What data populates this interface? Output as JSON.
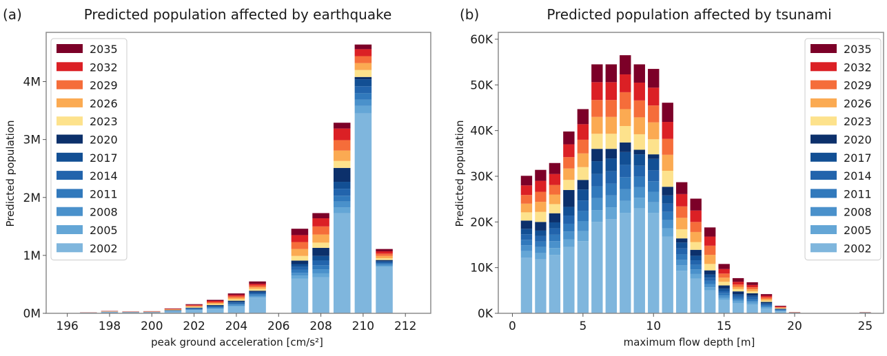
{
  "colors": {
    "2002": "#7fb6dd",
    "2005": "#64a6d6",
    "2008": "#4a91cb",
    "2011": "#3179bc",
    "2014": "#2264ac",
    "2017": "#124f94",
    "2020": "#0c306b",
    "2023": "#fde28c",
    "2026": "#fbaa52",
    "2029": "#f56d3a",
    "2032": "#db2025",
    "2035": "#7c0028"
  },
  "chart_data": [
    {
      "type": "bar",
      "stacked": true,
      "panel_label": "(a)",
      "title": "Predicted population affected by earthquake",
      "xlabel": "peak ground acceleration [cm/s²]",
      "ylabel": "Predicted population",
      "xlim": [
        195,
        213.2
      ],
      "ylim": [
        0,
        4.85
      ],
      "x_ticks": [
        196,
        198,
        200,
        202,
        204,
        206,
        208,
        210,
        212
      ],
      "y_ticks": [
        0,
        1,
        2,
        3,
        4
      ],
      "y_tick_labels": [
        "0M",
        "1M",
        "2M",
        "3M",
        "4M"
      ],
      "legend_position": "top-left",
      "legend": [
        "2035",
        "2032",
        "2029",
        "2026",
        "2023",
        "2020",
        "2017",
        "2014",
        "2011",
        "2008",
        "2005",
        "2002"
      ],
      "stack_order": [
        "2002",
        "2005",
        "2008",
        "2011",
        "2014",
        "2017",
        "2020",
        "2023",
        "2026",
        "2029",
        "2032",
        "2035"
      ],
      "categories": [
        196,
        197,
        198,
        199,
        200,
        201,
        202,
        203,
        204,
        205,
        206,
        207,
        208,
        209,
        210,
        211,
        212
      ],
      "series": [
        {
          "name": "2002",
          "values": [
            0,
            0.005,
            0.015,
            0.01,
            0.01,
            0.03,
            0.05,
            0.07,
            0.11,
            0.27,
            0,
            0.6,
            0.62,
            1.73,
            3.45,
            0.8,
            0
          ]
        },
        {
          "name": "2005",
          "values": [
            0,
            0.001,
            0.002,
            0.002,
            0.002,
            0.004,
            0.008,
            0.012,
            0.018,
            0.02,
            0,
            0.05,
            0.07,
            0.1,
            0.13,
            0.02,
            0
          ]
        },
        {
          "name": "2008",
          "values": [
            0,
            0.001,
            0.002,
            0.002,
            0.002,
            0.004,
            0.008,
            0.012,
            0.018,
            0.02,
            0,
            0.05,
            0.07,
            0.1,
            0.11,
            0.02,
            0
          ]
        },
        {
          "name": "2011",
          "values": [
            0,
            0.001,
            0.002,
            0.002,
            0.002,
            0.004,
            0.008,
            0.012,
            0.018,
            0.02,
            0,
            0.05,
            0.07,
            0.1,
            0.11,
            0.02,
            0
          ]
        },
        {
          "name": "2014",
          "values": [
            0,
            0.001,
            0.002,
            0.002,
            0.002,
            0.004,
            0.008,
            0.012,
            0.018,
            0.02,
            0,
            0.05,
            0.08,
            0.12,
            0.12,
            0.02,
            0
          ]
        },
        {
          "name": "2017",
          "values": [
            0,
            0.001,
            0.002,
            0.002,
            0.002,
            0.004,
            0.008,
            0.012,
            0.018,
            0.02,
            0,
            0.05,
            0.08,
            0.12,
            0.12,
            0.02,
            0
          ]
        },
        {
          "name": "2020",
          "values": [
            0,
            0.001,
            0.002,
            0.002,
            0.002,
            0.004,
            0.008,
            0.012,
            0.018,
            0.02,
            0,
            0.06,
            0.14,
            0.24,
            0.04,
            0.02,
            0
          ]
        },
        {
          "name": "2023",
          "values": [
            0,
            0.001,
            0.003,
            0.002,
            0.003,
            0.006,
            0.012,
            0.018,
            0.025,
            0.03,
            0,
            0.08,
            0.09,
            0.12,
            0.12,
            0.03,
            0
          ]
        },
        {
          "name": "2026",
          "values": [
            0,
            0.001,
            0.003,
            0.002,
            0.003,
            0.006,
            0.012,
            0.018,
            0.025,
            0.03,
            0,
            0.12,
            0.14,
            0.18,
            0.12,
            0.04,
            0
          ]
        },
        {
          "name": "2029",
          "values": [
            0,
            0.001,
            0.003,
            0.002,
            0.003,
            0.006,
            0.012,
            0.018,
            0.025,
            0.03,
            0,
            0.12,
            0.14,
            0.18,
            0.12,
            0.04,
            0
          ]
        },
        {
          "name": "2032",
          "values": [
            0,
            0.001,
            0.003,
            0.002,
            0.003,
            0.006,
            0.012,
            0.018,
            0.025,
            0.03,
            0,
            0.12,
            0.14,
            0.2,
            0.12,
            0.04,
            0
          ]
        },
        {
          "name": "2035",
          "values": [
            0,
            0.002,
            0.003,
            0.002,
            0.003,
            0.006,
            0.012,
            0.018,
            0.025,
            0.04,
            0,
            0.11,
            0.09,
            0.1,
            0.08,
            0.04,
            0
          ]
        }
      ]
    },
    {
      "type": "bar",
      "stacked": true,
      "panel_label": "(b)",
      "title": "Predicted population affected by tsunami",
      "xlabel": "maximum flow depth [m]",
      "ylabel": "Predicted population",
      "xlim": [
        -1,
        26.3
      ],
      "ylim": [
        0,
        61500
      ],
      "x_ticks": [
        0,
        5,
        10,
        15,
        20,
        25
      ],
      "y_ticks": [
        0,
        10000,
        20000,
        30000,
        40000,
        50000,
        60000
      ],
      "y_tick_labels": [
        "0K",
        "10K",
        "20K",
        "30K",
        "40K",
        "50K",
        "60K"
      ],
      "legend_position": "top-right",
      "legend": [
        "2035",
        "2032",
        "2029",
        "2026",
        "2023",
        "2020",
        "2017",
        "2014",
        "2011",
        "2008",
        "2005",
        "2002"
      ],
      "stack_order": [
        "2002",
        "2005",
        "2008",
        "2011",
        "2014",
        "2017",
        "2020",
        "2023",
        "2026",
        "2029",
        "2032",
        "2035"
      ],
      "categories": [
        1,
        2,
        3,
        4,
        5,
        6,
        7,
        8,
        9,
        10,
        11,
        12,
        13,
        14,
        15,
        16,
        17,
        18,
        19,
        20,
        21,
        22,
        23,
        24,
        25
      ],
      "series": [
        {
          "name": "2002",
          "values": [
            12200,
            11800,
            12800,
            14500,
            15800,
            20000,
            20600,
            22000,
            23000,
            22000,
            16800,
            9300,
            7600,
            5000,
            2900,
            2200,
            1900,
            1000,
            400,
            50,
            0,
            0,
            0,
            0,
            80
          ]
        },
        {
          "name": "2005",
          "values": [
            1400,
            1400,
            1500,
            1700,
            2200,
            2600,
            2600,
            2600,
            2300,
            2300,
            1800,
            1200,
            1000,
            700,
            500,
            400,
            400,
            250,
            100,
            20,
            0,
            0,
            0,
            0,
            20
          ]
        },
        {
          "name": "2008",
          "values": [
            1300,
            1300,
            1500,
            1700,
            2200,
            2600,
            2600,
            2600,
            2300,
            2300,
            1800,
            1200,
            1000,
            700,
            500,
            400,
            400,
            250,
            100,
            20,
            0,
            0,
            0,
            0,
            20
          ]
        },
        {
          "name": "2011",
          "values": [
            1200,
            1200,
            1400,
            1700,
            2200,
            2600,
            2600,
            2600,
            2300,
            2300,
            1800,
            1200,
            1000,
            700,
            500,
            400,
            400,
            250,
            100,
            20,
            0,
            0,
            0,
            0,
            20
          ]
        },
        {
          "name": "2014",
          "values": [
            1200,
            1200,
            1400,
            1800,
            2300,
            2700,
            2700,
            2700,
            2400,
            2400,
            1800,
            1300,
            1000,
            700,
            500,
            400,
            400,
            250,
            100,
            20,
            0,
            0,
            0,
            0,
            20
          ]
        },
        {
          "name": "2017",
          "values": [
            1200,
            1200,
            1300,
            1900,
            2400,
            2800,
            2800,
            2800,
            2500,
            2500,
            1800,
            1300,
            1000,
            700,
            500,
            400,
            400,
            250,
            100,
            20,
            0,
            0,
            0,
            0,
            20
          ]
        },
        {
          "name": "2020",
          "values": [
            1800,
            1900,
            2000,
            3700,
            2100,
            2700,
            2100,
            2100,
            1000,
            1000,
            1900,
            900,
            1300,
            900,
            700,
            600,
            500,
            250,
            100,
            20,
            0,
            0,
            0,
            0,
            20
          ]
        },
        {
          "name": "2023",
          "values": [
            1800,
            2200,
            2000,
            2200,
            2800,
            3300,
            3300,
            3600,
            3400,
            3300,
            3500,
            2000,
            1700,
            1400,
            800,
            500,
            400,
            300,
            100,
            20,
            0,
            0,
            0,
            0,
            20
          ]
        },
        {
          "name": "2026",
          "values": [
            1900,
            2200,
            2100,
            2500,
            3000,
            3700,
            3700,
            3700,
            3700,
            3700,
            3500,
            2500,
            2200,
            2000,
            900,
            500,
            450,
            350,
            120,
            20,
            0,
            0,
            0,
            0,
            20
          ]
        },
        {
          "name": "2029",
          "values": [
            1900,
            2200,
            2100,
            2500,
            3000,
            3700,
            3700,
            3700,
            3700,
            3700,
            3500,
            2500,
            2200,
            2000,
            900,
            500,
            450,
            350,
            120,
            20,
            0,
            0,
            0,
            0,
            20
          ]
        },
        {
          "name": "2032",
          "values": [
            2100,
            2400,
            2400,
            2800,
            3400,
            3900,
            3900,
            3900,
            3900,
            3900,
            3700,
            2700,
            2500,
            2000,
            1000,
            600,
            500,
            350,
            150,
            30,
            0,
            0,
            0,
            0,
            20
          ]
        },
        {
          "name": "2035",
          "values": [
            2100,
            2400,
            2400,
            2800,
            3300,
            3900,
            3900,
            4200,
            4000,
            4100,
            4200,
            2600,
            2600,
            2000,
            1100,
            800,
            600,
            350,
            150,
            30,
            0,
            0,
            0,
            0,
            20
          ]
        }
      ]
    }
  ]
}
